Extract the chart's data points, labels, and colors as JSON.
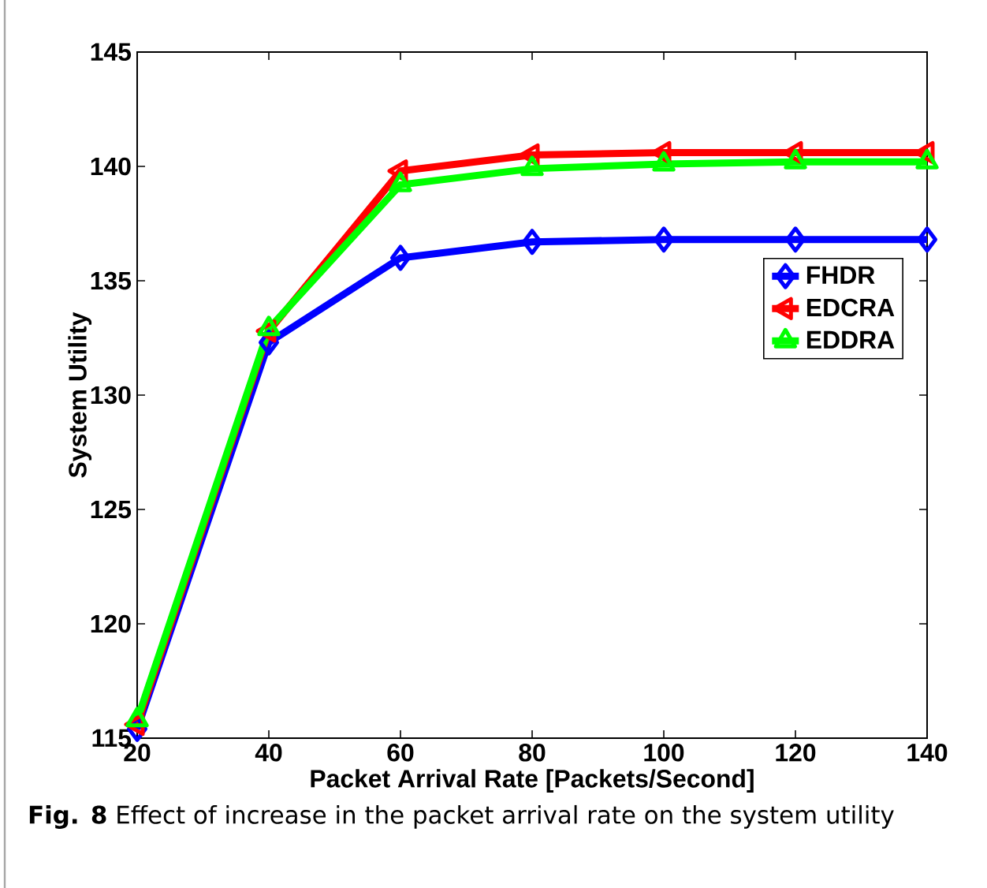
{
  "chart_data": {
    "type": "line",
    "xlabel": "Packet Arrival Rate [Packets/Second]",
    "ylabel": "System Utility",
    "annotations": [
      "**Fig. 8** Effect of increase in the packet arrival rate on the system utility"
    ],
    "x": [
      20,
      40,
      60,
      80,
      100,
      120,
      140
    ],
    "xlim": [
      20,
      140
    ],
    "xticks": [
      20,
      40,
      60,
      80,
      100,
      120,
      140
    ],
    "ylim": [
      115,
      145
    ],
    "yticks": [
      115,
      120,
      125,
      130,
      135,
      140,
      145
    ],
    "grid": false,
    "legend": "right",
    "line_style": "solid",
    "series": [
      {
        "name": "FHDR",
        "color": "#0000ff",
        "marker": "diamond",
        "values": [
          115.4,
          132.3,
          136.0,
          136.7,
          136.8,
          136.8,
          136.8
        ]
      },
      {
        "name": "EDCRA",
        "color": "#ff0000",
        "marker": "triangle-left",
        "values": [
          115.6,
          132.8,
          139.8,
          140.5,
          140.6,
          140.6,
          140.6
        ]
      },
      {
        "name": "EDDRA",
        "color": "#00ff00",
        "marker": "triangle",
        "values": [
          115.8,
          132.9,
          139.2,
          139.9,
          140.1,
          140.2,
          140.2
        ]
      }
    ]
  }
}
